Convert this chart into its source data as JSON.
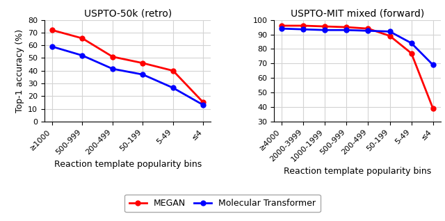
{
  "left_title": "USPTO-50k (retro)",
  "right_title": "USPTO-MIT mixed (forward)",
  "xlabel": "Reaction template popularity bins",
  "ylabel": "Top-1 accuracy (%)",
  "left_categories": [
    "≥1000",
    "500-999",
    "200-499",
    "50-199",
    "5-49",
    "≤4"
  ],
  "right_categories": [
    "≥4000",
    "2000-3999",
    "1000-1999",
    "500-999",
    "200-499",
    "50-199",
    "5-49",
    "≤4"
  ],
  "left_megan": [
    72,
    65.5,
    51,
    46,
    40,
    15
  ],
  "left_moltr": [
    59,
    52,
    41.5,
    37,
    26.5,
    13
  ],
  "right_megan": [
    96,
    96,
    95.5,
    95,
    94,
    89,
    77,
    39
  ],
  "right_moltr": [
    94,
    93.5,
    93,
    93,
    92.5,
    92,
    84,
    69
  ],
  "megan_color": "#ff0000",
  "moltr_color": "#0000ff",
  "left_ylim": [
    0,
    80
  ],
  "left_yticks": [
    0,
    10,
    20,
    30,
    40,
    50,
    60,
    70,
    80
  ],
  "right_ylim": [
    30,
    100
  ],
  "right_yticks": [
    30,
    40,
    50,
    60,
    70,
    80,
    90,
    100
  ],
  "legend_labels": [
    "MEGAN",
    "Molecular Transformer"
  ],
  "marker": "o",
  "linewidth": 2.0,
  "markersize": 5
}
